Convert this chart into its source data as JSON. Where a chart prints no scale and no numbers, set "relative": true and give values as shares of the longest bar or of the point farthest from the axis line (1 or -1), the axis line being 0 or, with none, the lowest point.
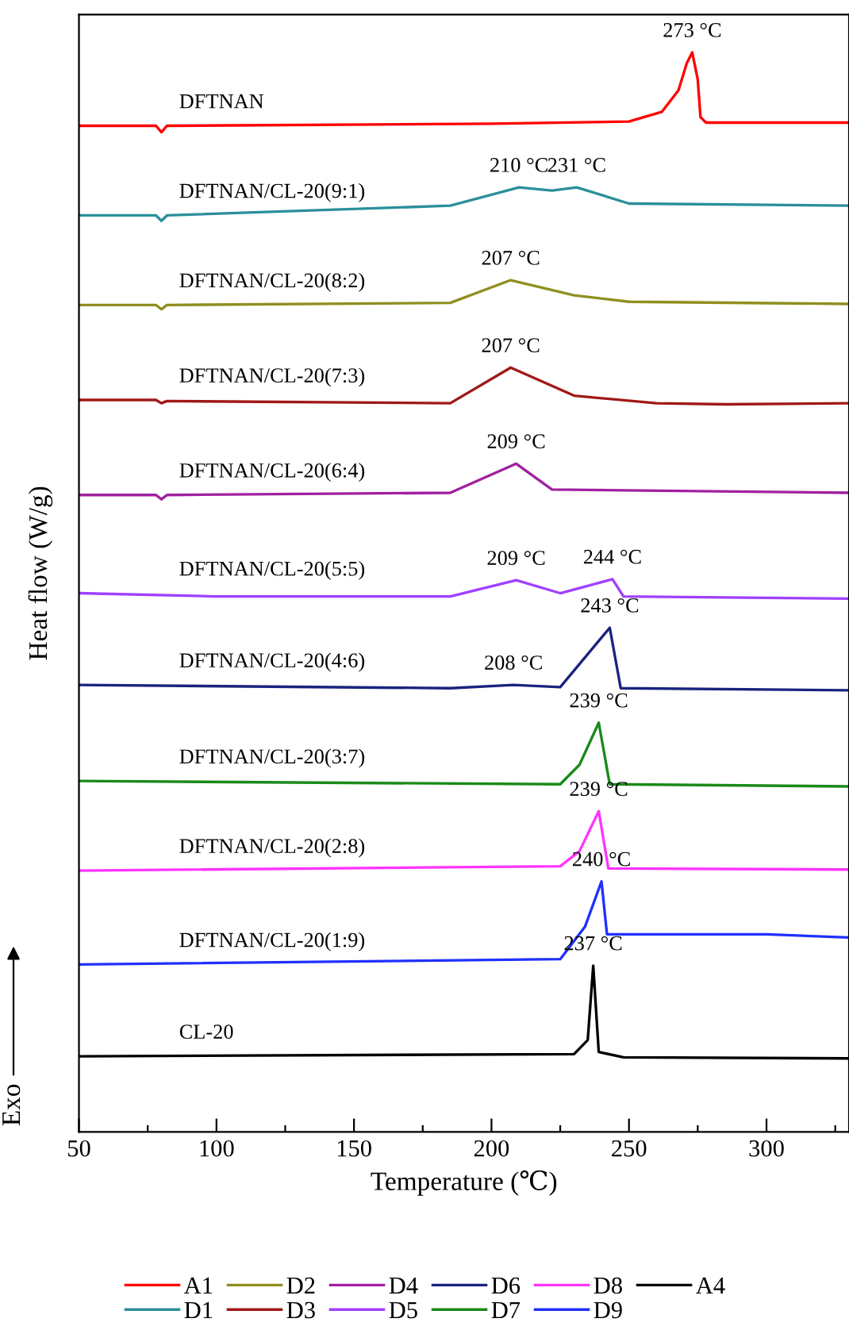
{
  "chart_data": {
    "type": "line",
    "relative": true,
    "xlabel": "Temperature (℃)",
    "ylabel": "Heat flow (W/g)",
    "xlim": [
      50,
      330
    ],
    "xticks": [
      50,
      {
        "value": 75,
        "label": null
      },
      100,
      {
        "value": 125,
        "label": null
      },
      150,
      {
        "value": 175,
        "label": null
      },
      200,
      {
        "value": 225,
        "label": null
      },
      250,
      {
        "value": 275,
        "label": null
      },
      300,
      {
        "value": 325,
        "label": null
      }
    ],
    "tick_labels": "x",
    "grid": false,
    "legend": "bottom",
    "line_style": "solid",
    "marker": "none",
    "series": [
      {
        "name": "A1",
        "color": "#ff0000",
        "x": [
          50,
          78,
          80,
          82,
          200,
          250,
          262,
          268,
          271,
          273,
          275,
          276,
          278,
          330
        ],
        "values": [
          0.932,
          0.932,
          0.926,
          0.932,
          0.934,
          0.936,
          0.945,
          0.965,
          0.99,
          1.0,
          0.975,
          0.94,
          0.935,
          0.935
        ]
      },
      {
        "name": "D1",
        "color": "#2a8f9a",
        "x": [
          50,
          78,
          80,
          82,
          185,
          210,
          222,
          231,
          250,
          330
        ],
        "values": [
          0.849,
          0.849,
          0.844,
          0.849,
          0.858,
          0.875,
          0.872,
          0.875,
          0.86,
          0.858
        ]
      },
      {
        "name": "D2",
        "color": "#8f8f1f",
        "x": [
          50,
          78,
          80,
          82,
          185,
          207,
          230,
          250,
          330
        ],
        "values": [
          0.766,
          0.766,
          0.762,
          0.766,
          0.768,
          0.789,
          0.775,
          0.769,
          0.767
        ]
      },
      {
        "name": "D3",
        "color": "#a01818",
        "x": [
          50,
          78,
          80,
          82,
          185,
          207,
          230,
          260,
          285,
          330
        ],
        "values": [
          0.678,
          0.678,
          0.675,
          0.677,
          0.675,
          0.708,
          0.682,
          0.675,
          0.674,
          0.675
        ]
      },
      {
        "name": "D4",
        "color": "#a020a0",
        "x": [
          50,
          78,
          80,
          82,
          185,
          209,
          222,
          330
        ],
        "values": [
          0.59,
          0.59,
          0.586,
          0.59,
          0.592,
          0.619,
          0.595,
          0.592
        ]
      },
      {
        "name": "D5",
        "color": "#a040ff",
        "x": [
          50,
          100,
          185,
          209,
          225,
          244,
          248,
          330
        ],
        "values": [
          0.499,
          0.496,
          0.496,
          0.511,
          0.499,
          0.512,
          0.496,
          0.494
        ]
      },
      {
        "name": "D6",
        "color": "#1a237e",
        "x": [
          50,
          185,
          208,
          225,
          243,
          247,
          330
        ],
        "values": [
          0.414,
          0.411,
          0.414,
          0.412,
          0.467,
          0.411,
          0.409
        ]
      },
      {
        "name": "D7",
        "color": "#1a8a1a",
        "x": [
          50,
          225,
          232,
          239,
          243,
          330
        ],
        "values": [
          0.325,
          0.322,
          0.34,
          0.379,
          0.322,
          0.32
        ]
      },
      {
        "name": "D8",
        "color": "#ff33ff",
        "x": [
          50,
          225,
          232,
          239,
          242.5,
          330
        ],
        "values": [
          0.242,
          0.246,
          0.26,
          0.297,
          0.244,
          0.243
        ]
      },
      {
        "name": "D9",
        "color": "#2030ff",
        "x": [
          50,
          225,
          234,
          240,
          242,
          300,
          330
        ],
        "values": [
          0.155,
          0.16,
          0.19,
          0.232,
          0.183,
          0.183,
          0.18
        ]
      },
      {
        "name": "A4",
        "color": "#000000",
        "x": [
          50,
          230,
          235,
          237,
          239,
          248,
          330
        ],
        "values": [
          0.07,
          0.072,
          0.085,
          0.154,
          0.074,
          0.069,
          0.068
        ]
      }
    ],
    "annotations": [
      "DFTNAN",
      "DFTNAN/CL-20(9:1)",
      "DFTNAN/CL-20(8:2)",
      "DFTNAN/CL-20(7:3)",
      "DFTNAN/CL-20(6:4)",
      "DFTNAN/CL-20(5:5)",
      "DFTNAN/CL-20(4:6)",
      "DFTNAN/CL-20(3:7)",
      "DFTNAN/CL-20(2:8)",
      "DFTNAN/CL-20(1:9)",
      "CL-20",
      {
        "text": "273 °C",
        "x": 273,
        "y": 1.0
      },
      {
        "text": "210 °C",
        "x": 210,
        "y": 0.875
      },
      {
        "text": "231 °C",
        "x": 231,
        "y": 0.875
      },
      {
        "text": "207 °C",
        "x": 207,
        "y": 0.789
      },
      {
        "text": "207 °C",
        "x": 207,
        "y": 0.708
      },
      {
        "text": "209 °C",
        "x": 209,
        "y": 0.619
      },
      {
        "text": "209 °C",
        "x": 209,
        "y": 0.511
      },
      {
        "text": "244 °C",
        "x": 244,
        "y": 0.512
      },
      {
        "text": "208 °C",
        "x": 208,
        "y": 0.414
      },
      {
        "text": "243 °C",
        "x": 243,
        "y": 0.467
      },
      {
        "text": "239 °C",
        "x": 239,
        "y": 0.379
      },
      {
        "text": "239 °C",
        "x": 239,
        "y": 0.297
      },
      {
        "text": "240 °C",
        "x": 240,
        "y": 0.232
      },
      {
        "text": "237 °C",
        "x": 237,
        "y": 0.154
      },
      "Exo"
    ]
  }
}
